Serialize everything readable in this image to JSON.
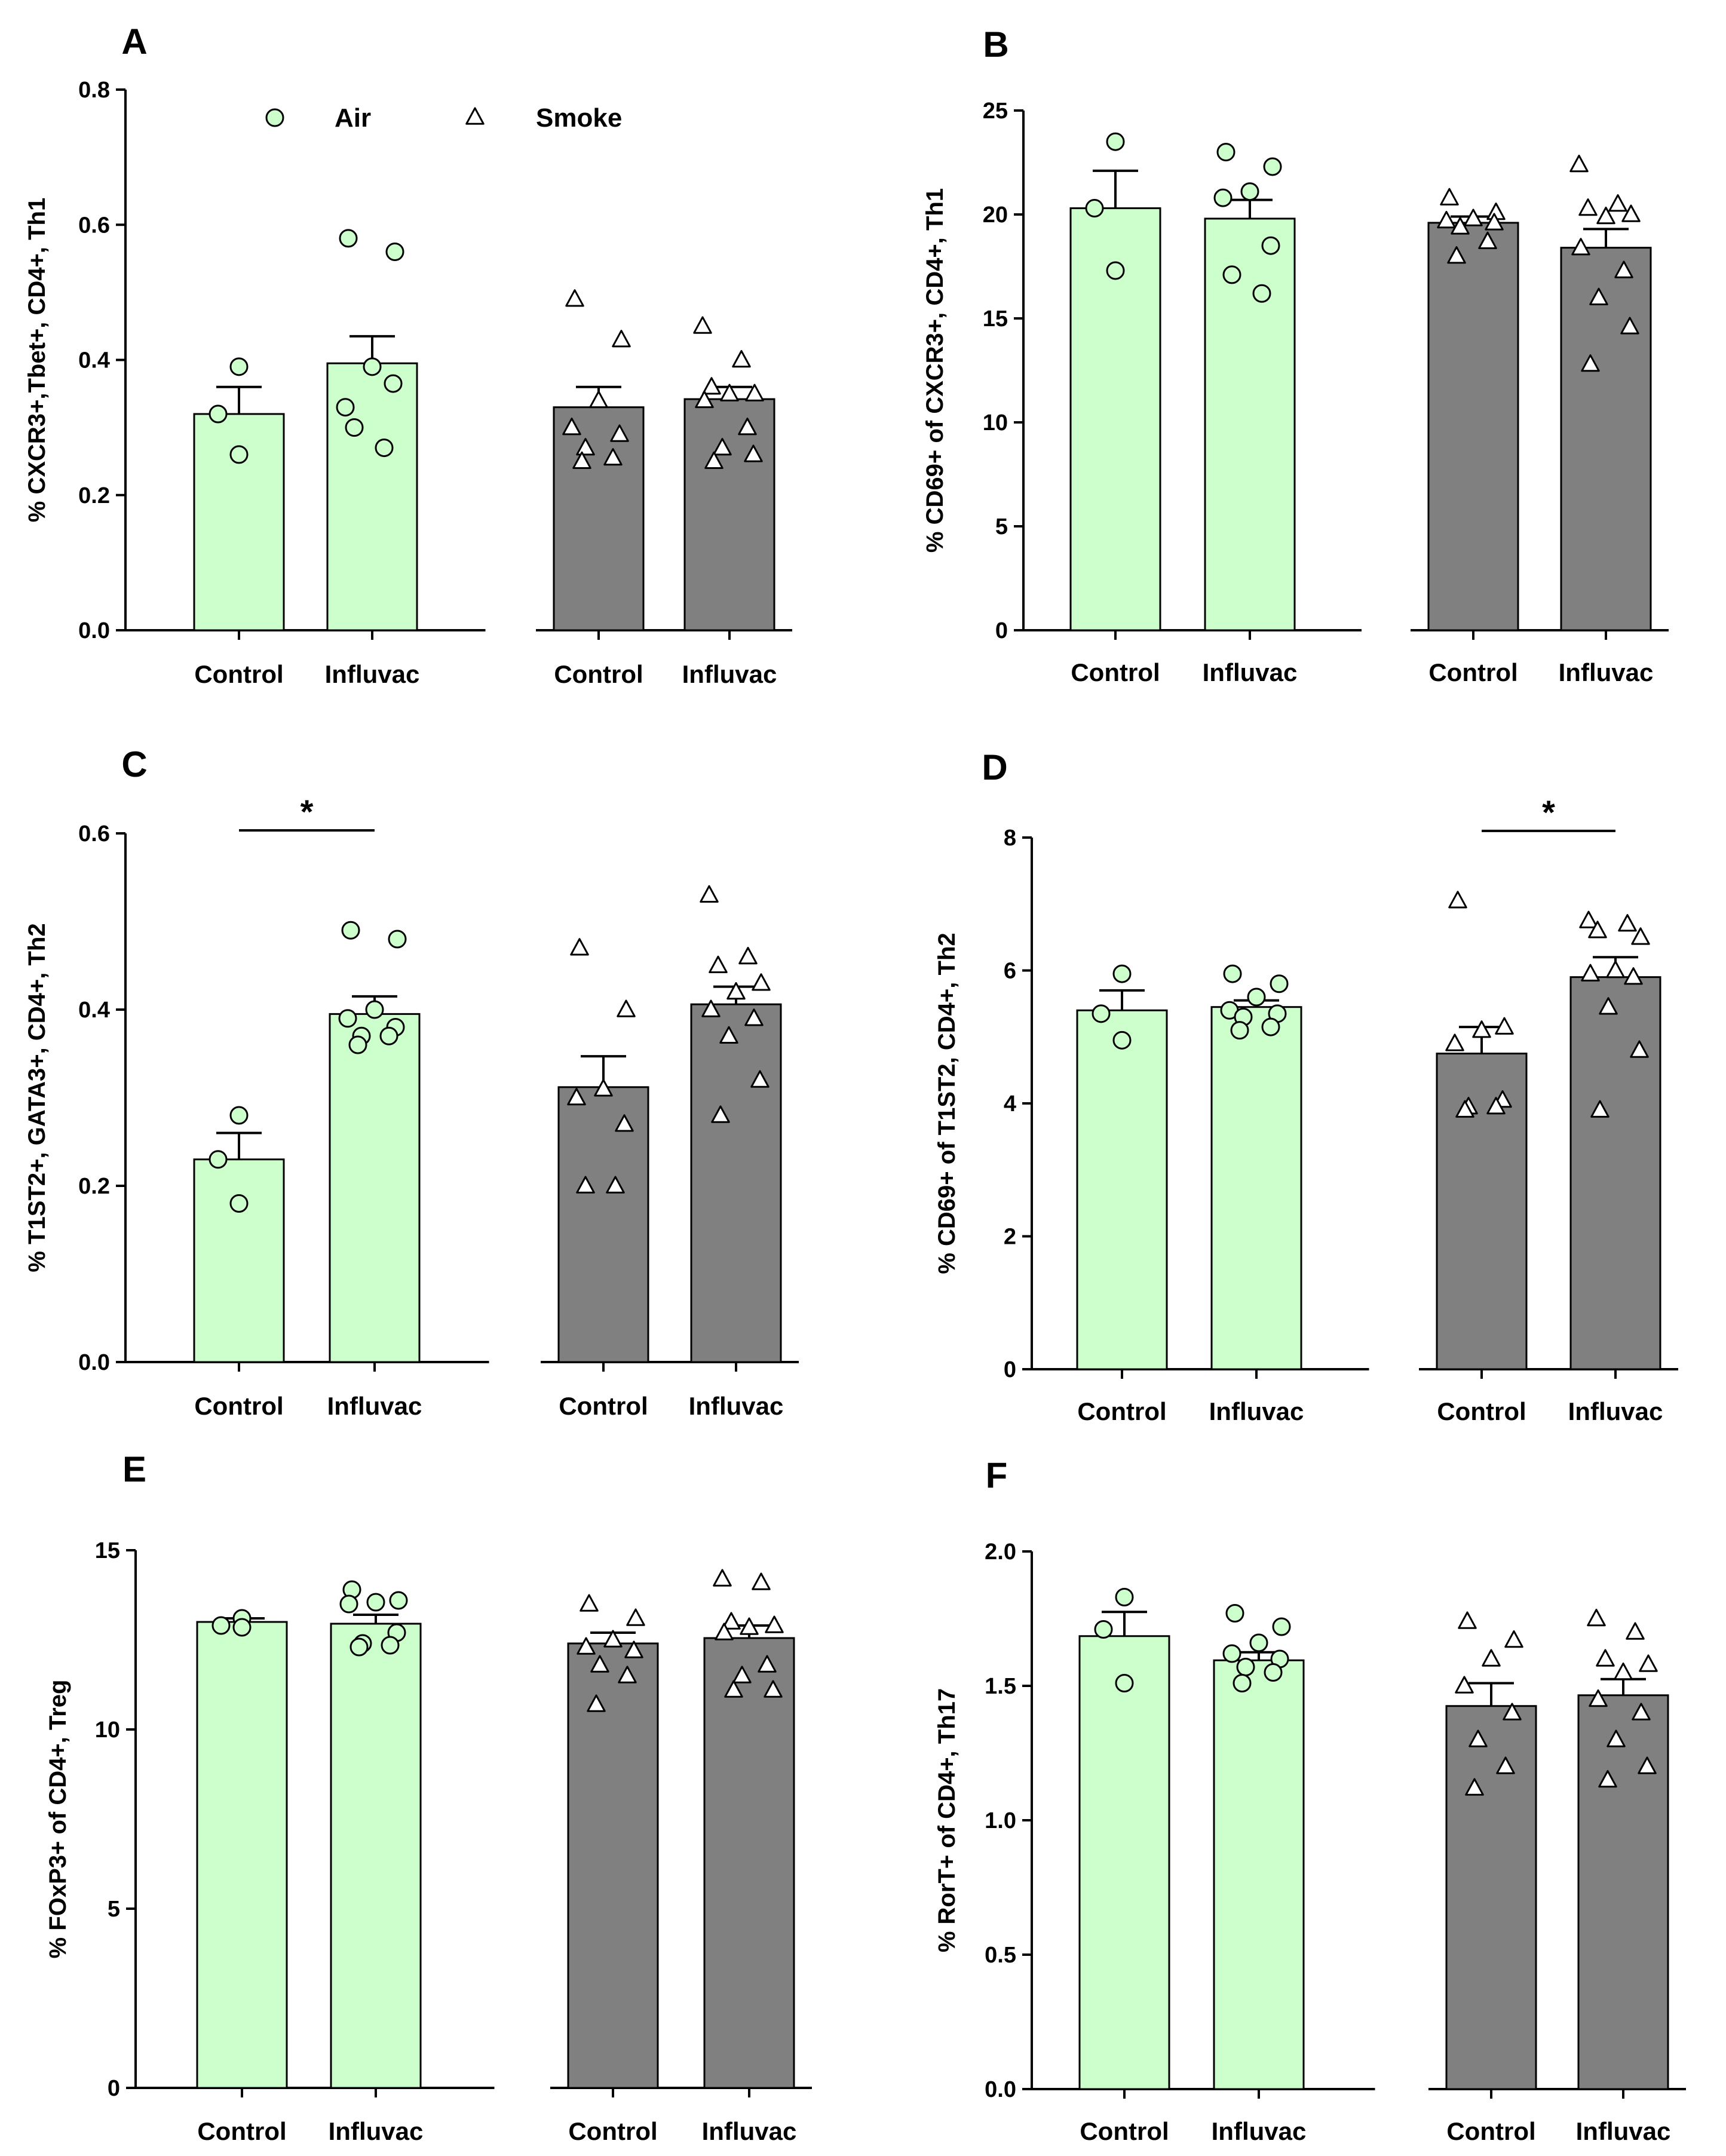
{
  "colors": {
    "air": "#ccffcc",
    "smoke": "#808080",
    "stroke": "#000000",
    "airMarker": "#ccffcc",
    "smokeMarker": "#ffffff"
  },
  "legend": {
    "air": "Air",
    "smoke": "Smoke",
    "air_marker": "circle-icon",
    "smoke_marker": "triangle-icon"
  },
  "chart_data": [
    {
      "panel": "A",
      "type": "bar",
      "ylabel": "% CXCR3+,Tbet+, CD4+, Th1",
      "ylim": [
        0,
        0.8
      ],
      "yticks": [
        0.0,
        0.2,
        0.4,
        0.6,
        0.8
      ],
      "yticklabels": [
        "0.0",
        "0.2",
        "0.4",
        "0.6",
        "0.8"
      ],
      "categories": [
        "Control",
        "Influvac",
        "Control",
        "Influvac"
      ],
      "groups": [
        "Air",
        "Air",
        "Smoke",
        "Smoke"
      ],
      "values": [
        0.32,
        0.395,
        0.33,
        0.342
      ],
      "sem": [
        0.04,
        0.04,
        0.03,
        0.018
      ],
      "points": [
        [
          0.39,
          0.32,
          0.26
        ],
        [
          0.58,
          0.56,
          0.39,
          0.33,
          0.365,
          0.3,
          0.27
        ],
        [
          0.49,
          0.43,
          0.34,
          0.3,
          0.29,
          0.27,
          0.255,
          0.25
        ],
        [
          0.45,
          0.4,
          0.36,
          0.35,
          0.35,
          0.34,
          0.3,
          0.27,
          0.26,
          0.25
        ]
      ],
      "significance": []
    },
    {
      "panel": "B",
      "type": "bar",
      "ylabel": "% CD69+ of CXCR3+, CD4+, Th1",
      "ylim": [
        0,
        25
      ],
      "yticks": [
        0,
        5,
        10,
        15,
        20,
        25
      ],
      "yticklabels": [
        "0",
        "5",
        "10",
        "15",
        "20",
        "25"
      ],
      "categories": [
        "Control",
        "Influvac",
        "Control",
        "Influvac"
      ],
      "groups": [
        "Air",
        "Air",
        "Smoke",
        "Smoke"
      ],
      "values": [
        20.3,
        19.8,
        19.6,
        18.4
      ],
      "sem": [
        1.8,
        0.9,
        0.3,
        0.9
      ],
      "points": [
        [
          23.5,
          20.3,
          17.3
        ],
        [
          23.0,
          22.3,
          21.1,
          20.8,
          18.5,
          17.1,
          16.2
        ],
        [
          20.8,
          20.1,
          19.8,
          19.7,
          19.6,
          19.4,
          18.7,
          18.0
        ],
        [
          22.4,
          20.5,
          20.3,
          20.0,
          19.9,
          18.4,
          17.3,
          16.0,
          14.6,
          12.8
        ]
      ],
      "significance": []
    },
    {
      "panel": "C",
      "type": "bar",
      "ylabel": "% T1ST2+, GATA3+, CD4+, Th2",
      "ylim": [
        0,
        0.6
      ],
      "yticks": [
        0.0,
        0.2,
        0.4,
        0.6
      ],
      "yticklabels": [
        "0.0",
        "0.2",
        "0.4",
        "0.6"
      ],
      "categories": [
        "Control",
        "Influvac",
        "Control",
        "Influvac"
      ],
      "groups": [
        "Air",
        "Air",
        "Smoke",
        "Smoke"
      ],
      "values": [
        0.23,
        0.395,
        0.312,
        0.406
      ],
      "sem": [
        0.03,
        0.02,
        0.035,
        0.02
      ],
      "points": [
        [
          0.28,
          0.23,
          0.18
        ],
        [
          0.49,
          0.48,
          0.4,
          0.39,
          0.38,
          0.37,
          0.37,
          0.36
        ],
        [
          0.47,
          0.4,
          0.31,
          0.3,
          0.27,
          0.2,
          0.2
        ],
        [
          0.53,
          0.46,
          0.45,
          0.43,
          0.42,
          0.4,
          0.39,
          0.37,
          0.32,
          0.28
        ]
      ],
      "significance": [
        {
          "from": 0,
          "to": 1,
          "label": "*",
          "y": 0.6
        }
      ]
    },
    {
      "panel": "D",
      "type": "bar",
      "ylabel": "% CD69+ of T1ST2, CD4+, Th2",
      "ylim": [
        0,
        8
      ],
      "yticks": [
        0,
        2,
        4,
        6,
        8
      ],
      "yticklabels": [
        "0",
        "2",
        "4",
        "6",
        "8"
      ],
      "categories": [
        "Control",
        "Influvac",
        "Control",
        "Influvac"
      ],
      "groups": [
        "Air",
        "Air",
        "Smoke",
        "Smoke"
      ],
      "values": [
        5.4,
        5.45,
        4.75,
        5.9
      ],
      "sem": [
        0.3,
        0.1,
        0.4,
        0.3
      ],
      "points": [
        [
          5.95,
          5.35,
          4.95
        ],
        [
          5.95,
          5.8,
          5.6,
          5.4,
          5.35,
          5.3,
          5.15,
          5.1
        ],
        [
          7.05,
          5.15,
          5.1,
          4.9,
          4.05,
          3.95,
          3.95,
          3.9
        ],
        [
          6.75,
          6.7,
          6.6,
          6.5,
          6.0,
          5.95,
          5.9,
          5.45,
          4.8,
          3.9
        ]
      ],
      "significance": [
        {
          "from": 2,
          "to": 3,
          "label": "*",
          "y": 8.1
        }
      ]
    },
    {
      "panel": "E",
      "type": "bar",
      "ylabel": "% FOxP3+ of CD4+, Treg",
      "ylim": [
        0,
        15
      ],
      "yticks": [
        0,
        5,
        10,
        15
      ],
      "yticklabels": [
        "0",
        "5",
        "10",
        "15"
      ],
      "categories": [
        "Control",
        "Influvac",
        "Control",
        "Influvac"
      ],
      "groups": [
        "Air",
        "Air",
        "Smoke",
        "Smoke"
      ],
      "values": [
        13.0,
        12.95,
        12.4,
        12.55
      ],
      "sem": [
        0.1,
        0.25,
        0.3,
        0.35
      ],
      "points": [
        [
          13.1,
          12.9,
          12.85
        ],
        [
          13.9,
          13.6,
          13.55,
          13.5,
          12.7,
          12.4,
          12.35,
          12.3
        ],
        [
          13.5,
          13.1,
          12.5,
          12.3,
          12.2,
          11.8,
          11.5,
          10.7
        ],
        [
          14.2,
          14.1,
          13.0,
          12.9,
          12.85,
          12.7,
          11.8,
          11.5,
          11.1,
          11.1
        ]
      ],
      "significance": []
    },
    {
      "panel": "F",
      "type": "bar",
      "ylabel": "% RorT+ of CD4+, Th17",
      "ylim": [
        0,
        2.0
      ],
      "yticks": [
        0.0,
        0.5,
        1.0,
        1.5,
        2.0
      ],
      "yticklabels": [
        "0.0",
        "0.5",
        "1.0",
        "1.5",
        "2.0"
      ],
      "categories": [
        "Control",
        "Influvac",
        "Control",
        "Influvac"
      ],
      "groups": [
        "Air",
        "Air",
        "Smoke",
        "Smoke"
      ],
      "values": [
        1.685,
        1.595,
        1.425,
        1.465
      ],
      "sem": [
        0.09,
        0.03,
        0.085,
        0.06
      ],
      "points": [
        [
          1.83,
          1.71,
          1.51
        ],
        [
          1.77,
          1.72,
          1.66,
          1.62,
          1.6,
          1.57,
          1.55,
          1.51
        ],
        [
          1.74,
          1.67,
          1.6,
          1.5,
          1.4,
          1.3,
          1.2,
          1.12
        ],
        [
          1.75,
          1.7,
          1.6,
          1.58,
          1.55,
          1.45,
          1.4,
          1.3,
          1.2,
          1.15
        ]
      ],
      "significance": []
    }
  ]
}
